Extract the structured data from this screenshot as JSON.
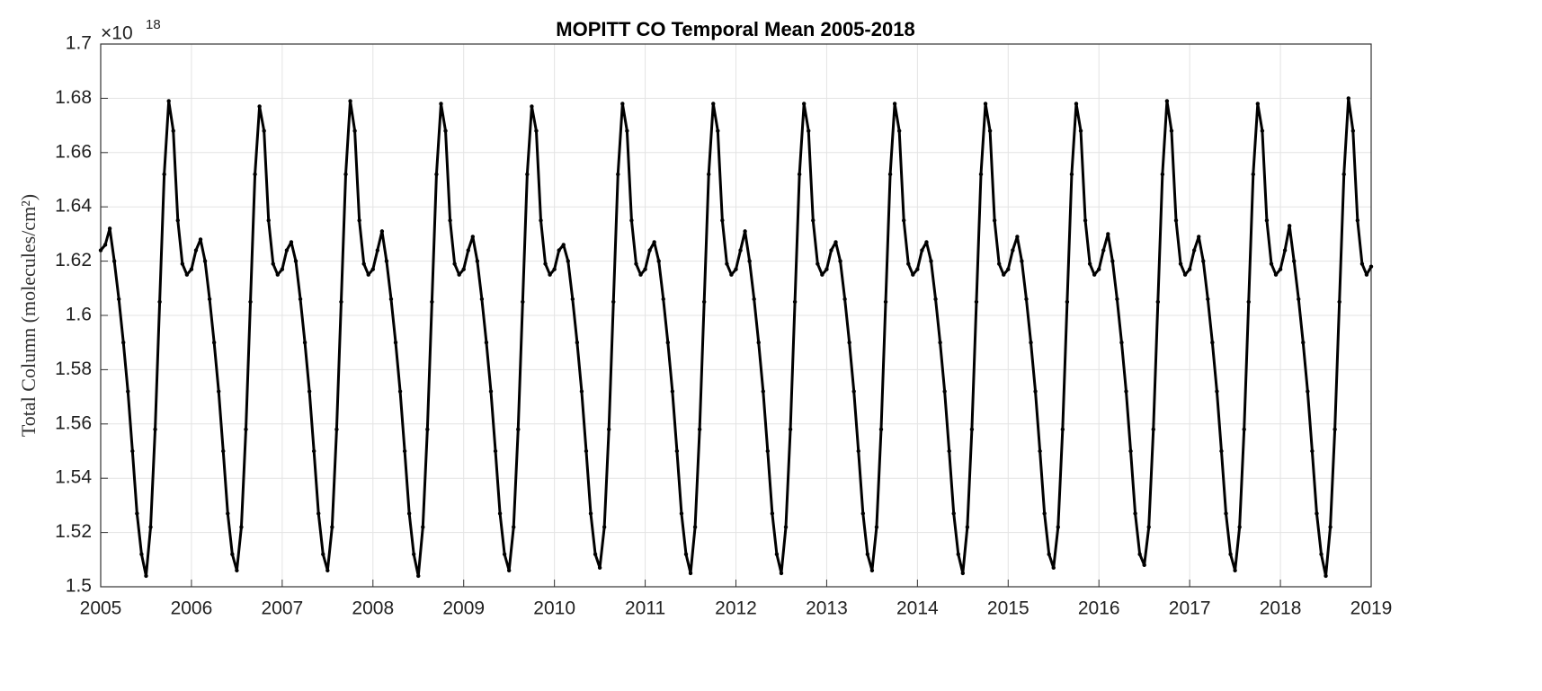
{
  "chart_data": {
    "type": "line",
    "title": "MOPITT CO Temporal Mean 2005-2018",
    "y_label": "Total Column (molecules/cm²)",
    "y_scale_label": "×10",
    "y_scale_exponent": "18",
    "xlim": [
      2005,
      2019
    ],
    "xticks": [
      2005,
      2006,
      2007,
      2008,
      2009,
      2010,
      2011,
      2012,
      2013,
      2014,
      2015,
      2016,
      2017,
      2018,
      2019
    ],
    "ylim": [
      1.5,
      1.7
    ],
    "yticks": [
      1.5,
      1.52,
      1.54,
      1.56,
      1.58,
      1.6,
      1.62,
      1.64,
      1.66,
      1.68,
      1.7
    ],
    "grid": true,
    "series": [
      {
        "color": "#000000",
        "x": [
          2005,
          2005.05,
          2005.1,
          2005.15,
          2005.2,
          2005.25,
          2005.3,
          2005.35,
          2005.4,
          2005.45,
          2005.5,
          2005.55,
          2005.6,
          2005.65,
          2005.7,
          2005.75,
          2005.8,
          2005.85,
          2005.9,
          2005.95,
          2006,
          2006.05,
          2006.1,
          2006.15,
          2006.2,
          2006.25,
          2006.3,
          2006.35,
          2006.4,
          2006.45,
          2006.5,
          2006.55,
          2006.6,
          2006.65,
          2006.7,
          2006.75,
          2006.8,
          2006.85,
          2006.9,
          2006.95,
          2007,
          2007.05,
          2007.1,
          2007.15,
          2007.2,
          2007.25,
          2007.3,
          2007.35,
          2007.4,
          2007.45,
          2007.5,
          2007.55,
          2007.6,
          2007.65,
          2007.7,
          2007.75,
          2007.8,
          2007.85,
          2007.9,
          2007.95,
          2008,
          2008.05,
          2008.1,
          2008.15,
          2008.2,
          2008.25,
          2008.3,
          2008.35,
          2008.4,
          2008.45,
          2008.5,
          2008.55,
          2008.6,
          2008.65,
          2008.7,
          2008.75,
          2008.8,
          2008.85,
          2008.9,
          2008.95,
          2009,
          2009.05,
          2009.1,
          2009.15,
          2009.2,
          2009.25,
          2009.3,
          2009.35,
          2009.4,
          2009.45,
          2009.5,
          2009.55,
          2009.6,
          2009.65,
          2009.7,
          2009.75,
          2009.8,
          2009.85,
          2009.9,
          2009.95,
          2010,
          2010.05,
          2010.1,
          2010.15,
          2010.2,
          2010.25,
          2010.3,
          2010.35,
          2010.4,
          2010.45,
          2010.5,
          2010.55,
          2010.6,
          2010.65,
          2010.7,
          2010.75,
          2010.8,
          2010.85,
          2010.9,
          2010.95,
          2011,
          2011.05,
          2011.1,
          2011.15,
          2011.2,
          2011.25,
          2011.3,
          2011.35,
          2011.4,
          2011.45,
          2011.5,
          2011.55,
          2011.6,
          2011.65,
          2011.7,
          2011.75,
          2011.8,
          2011.85,
          2011.9,
          2011.95,
          2012,
          2012.05,
          2012.1,
          2012.15,
          2012.2,
          2012.25,
          2012.3,
          2012.35,
          2012.4,
          2012.45,
          2012.5,
          2012.55,
          2012.6,
          2012.65,
          2012.7,
          2012.75,
          2012.8,
          2012.85,
          2012.9,
          2012.95,
          2013,
          2013.05,
          2013.1,
          2013.15,
          2013.2,
          2013.25,
          2013.3,
          2013.35,
          2013.4,
          2013.45,
          2013.5,
          2013.55,
          2013.6,
          2013.65,
          2013.7,
          2013.75,
          2013.8,
          2013.85,
          2013.9,
          2013.95,
          2014,
          2014.05,
          2014.1,
          2014.15,
          2014.2,
          2014.25,
          2014.3,
          2014.35,
          2014.4,
          2014.45,
          2014.5,
          2014.55,
          2014.6,
          2014.65,
          2014.7,
          2014.75,
          2014.8,
          2014.85,
          2014.9,
          2014.95,
          2015,
          2015.05,
          2015.1,
          2015.15,
          2015.2,
          2015.25,
          2015.3,
          2015.35,
          2015.4,
          2015.45,
          2015.5,
          2015.55,
          2015.6,
          2015.65,
          2015.7,
          2015.75,
          2015.8,
          2015.85,
          2015.9,
          2015.95,
          2016,
          2016.05,
          2016.1,
          2016.15,
          2016.2,
          2016.25,
          2016.3,
          2016.35,
          2016.4,
          2016.45,
          2016.5,
          2016.55,
          2016.6,
          2016.65,
          2016.7,
          2016.75,
          2016.8,
          2016.85,
          2016.9,
          2016.95,
          2017,
          2017.05,
          2017.1,
          2017.15,
          2017.2,
          2017.25,
          2017.3,
          2017.35,
          2017.4,
          2017.45,
          2017.5,
          2017.55,
          2017.6,
          2017.65,
          2017.7,
          2017.75,
          2017.8,
          2017.85,
          2017.9,
          2017.95,
          2018,
          2018.05,
          2018.1,
          2018.15,
          2018.2,
          2018.25,
          2018.3,
          2018.35,
          2018.4,
          2018.45,
          2018.5,
          2018.55,
          2018.6,
          2018.65,
          2018.7,
          2018.75,
          2018.8,
          2018.85,
          2018.9,
          2018.95,
          2019
        ],
        "values": [
          1.624,
          1.626,
          1.632,
          1.62,
          1.606,
          1.59,
          1.572,
          1.55,
          1.527,
          1.512,
          1.504,
          1.522,
          1.558,
          1.605,
          1.652,
          1.679,
          1.668,
          1.635,
          1.619,
          1.615,
          1.617,
          1.624,
          1.628,
          1.62,
          1.606,
          1.59,
          1.572,
          1.55,
          1.527,
          1.512,
          1.506,
          1.522,
          1.558,
          1.605,
          1.652,
          1.677,
          1.668,
          1.635,
          1.619,
          1.615,
          1.617,
          1.624,
          1.627,
          1.62,
          1.606,
          1.59,
          1.572,
          1.55,
          1.527,
          1.512,
          1.506,
          1.522,
          1.558,
          1.605,
          1.652,
          1.679,
          1.668,
          1.635,
          1.619,
          1.615,
          1.617,
          1.624,
          1.631,
          1.62,
          1.606,
          1.59,
          1.572,
          1.55,
          1.527,
          1.512,
          1.504,
          1.522,
          1.558,
          1.605,
          1.652,
          1.678,
          1.668,
          1.635,
          1.619,
          1.615,
          1.617,
          1.624,
          1.629,
          1.62,
          1.606,
          1.59,
          1.572,
          1.55,
          1.527,
          1.512,
          1.506,
          1.522,
          1.558,
          1.605,
          1.652,
          1.677,
          1.668,
          1.635,
          1.619,
          1.615,
          1.617,
          1.624,
          1.626,
          1.62,
          1.606,
          1.59,
          1.572,
          1.55,
          1.527,
          1.512,
          1.507,
          1.522,
          1.558,
          1.605,
          1.652,
          1.678,
          1.668,
          1.635,
          1.619,
          1.615,
          1.617,
          1.624,
          1.627,
          1.62,
          1.606,
          1.59,
          1.572,
          1.55,
          1.527,
          1.512,
          1.505,
          1.522,
          1.558,
          1.605,
          1.652,
          1.678,
          1.668,
          1.635,
          1.619,
          1.615,
          1.617,
          1.624,
          1.631,
          1.62,
          1.606,
          1.59,
          1.572,
          1.55,
          1.527,
          1.512,
          1.505,
          1.522,
          1.558,
          1.605,
          1.652,
          1.678,
          1.668,
          1.635,
          1.619,
          1.615,
          1.617,
          1.624,
          1.627,
          1.62,
          1.606,
          1.59,
          1.572,
          1.55,
          1.527,
          1.512,
          1.506,
          1.522,
          1.558,
          1.605,
          1.652,
          1.678,
          1.668,
          1.635,
          1.619,
          1.615,
          1.617,
          1.624,
          1.627,
          1.62,
          1.606,
          1.59,
          1.572,
          1.55,
          1.527,
          1.512,
          1.505,
          1.522,
          1.558,
          1.605,
          1.652,
          1.678,
          1.668,
          1.635,
          1.619,
          1.615,
          1.617,
          1.624,
          1.629,
          1.62,
          1.606,
          1.59,
          1.572,
          1.55,
          1.527,
          1.512,
          1.507,
          1.522,
          1.558,
          1.605,
          1.652,
          1.678,
          1.668,
          1.635,
          1.619,
          1.615,
          1.617,
          1.624,
          1.63,
          1.62,
          1.606,
          1.59,
          1.572,
          1.55,
          1.527,
          1.512,
          1.508,
          1.522,
          1.558,
          1.605,
          1.652,
          1.679,
          1.668,
          1.635,
          1.619,
          1.615,
          1.617,
          1.624,
          1.629,
          1.62,
          1.606,
          1.59,
          1.572,
          1.55,
          1.527,
          1.512,
          1.506,
          1.522,
          1.558,
          1.605,
          1.652,
          1.678,
          1.668,
          1.635,
          1.619,
          1.615,
          1.617,
          1.624,
          1.633,
          1.62,
          1.606,
          1.59,
          1.572,
          1.55,
          1.527,
          1.512,
          1.504,
          1.522,
          1.558,
          1.605,
          1.652,
          1.68,
          1.668,
          1.635,
          1.619,
          1.615,
          1.618
        ]
      }
    ]
  }
}
